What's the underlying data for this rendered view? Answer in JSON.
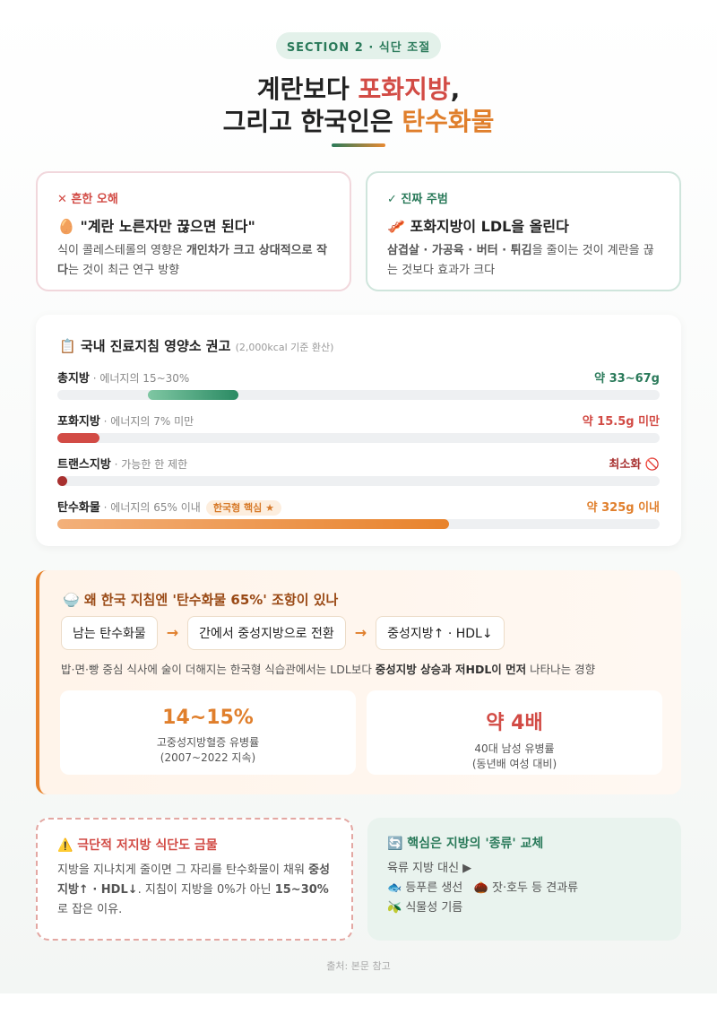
{
  "header": {
    "badge": "SECTION 2 · 식단 조절",
    "line1": [
      "계란보다 ",
      "포화지방",
      ","
    ],
    "line2": [
      "그리고 한국인은 ",
      "탄수화물"
    ]
  },
  "myth": {
    "tag": "✕ 흔한 오해",
    "heading": "🥚 \"계란 노른자만 끊으면 된다\"",
    "desc": [
      "식이 콜레스테롤의 영향은 ",
      "개인차가 크고 상대적으로 작다",
      "는 것이 최근 연구 방향"
    ]
  },
  "truth": {
    "tag": "✓ 진짜 주범",
    "heading": "🥓 포화지방이 LDL을 올린다",
    "desc": [
      "삼겹살 · 가공육 · 버터 · 튀김",
      "을 줄이는 것이 계란을 끊는 것보다 효과가 크다"
    ]
  },
  "guide": {
    "icon": "📋",
    "title": "국내 진료지침 영양소 권고",
    "note": "(2,000kcal 기준 환산)",
    "rows": [
      {
        "name": "총지방",
        "desc": " · 에너지의 15~30%",
        "value": "약 33~67g"
      },
      {
        "name": "포화지방",
        "desc": " · 에너지의 7% 미만",
        "value": "약 15.5g 미만"
      },
      {
        "name": "트랜스지방",
        "desc": " · 가능한 한 제한",
        "value": "최소화 🚫"
      },
      {
        "name": "탄수화물",
        "desc": " · 에너지의 65% 이내",
        "badge": "한국형 핵심 ★",
        "value": "약 325g 이내"
      }
    ]
  },
  "why": {
    "title": [
      "🍚 왜 한국 지침엔 '",
      "탄수화물 65%",
      "' 조항이 있나"
    ],
    "flow": [
      "남는 탄수화물",
      "→",
      "간에서 중성지방으로 전환",
      "→",
      "중성지방↑ · HDL↓"
    ],
    "desc": [
      "밥·면·빵 중심 식사에 술이 더해지는 한국형 식습관에서는 LDL보다 ",
      "중성지방 상승과 저HDL이 먼저",
      " 나타나는 경향"
    ],
    "stats": [
      {
        "value": "14~15%",
        "label": "고중성지방혈증 유병률",
        "sub": "(2007~2022 지속)"
      },
      {
        "value": "약 4배",
        "label": "40대 남성 유병률",
        "sub": "(동년배 여성 대비)"
      }
    ]
  },
  "warning": {
    "title": "⚠️ 극단적 저지방 식단도 금물",
    "desc": [
      "지방을 지나치게 줄이면 그 자리를 탄수화물이 채워 ",
      "중성지방↑ · HDL↓",
      ". 지침이 지방을 0%가 아닌 ",
      "15~30%",
      "로 잡은 이유."
    ]
  },
  "key": {
    "title": "🔄 핵심은 지방의 '종류' 교체",
    "lead": "육류 지방 대신 ▶",
    "items": [
      "🐟 등푸른 생선",
      "🌰 잣·호두 등 견과류",
      "🫒 식물성 기름"
    ]
  },
  "footer": "출처: 본문 참고"
}
